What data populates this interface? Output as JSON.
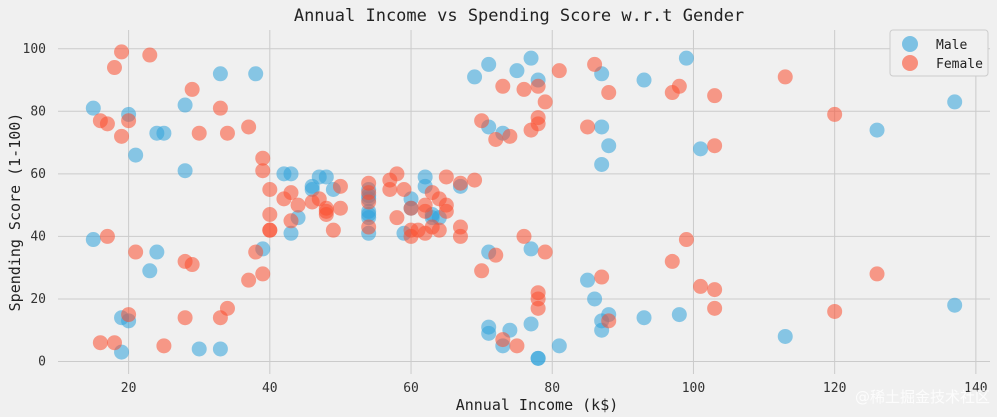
{
  "chart_data": {
    "type": "scatter",
    "title": "Annual Income vs Spending Score w.r.t Gender",
    "xlabel": "Annual Income (k$)",
    "ylabel": "Spending Score (1-100)",
    "xlim": [
      10,
      142
    ],
    "ylim": [
      -4,
      106
    ],
    "xticks": [
      20,
      40,
      60,
      80,
      100,
      120,
      140
    ],
    "yticks": [
      0,
      20,
      40,
      60,
      80,
      100
    ],
    "grid": true,
    "legend_position": "top-right",
    "watermark": "@稀土掘金技术社区",
    "series": [
      {
        "name": "Male",
        "color": "#30a2da",
        "points": [
          [
            15,
            39
          ],
          [
            15,
            81
          ],
          [
            19,
            3
          ],
          [
            19,
            14
          ],
          [
            20,
            13
          ],
          [
            20,
            79
          ],
          [
            21,
            66
          ],
          [
            23,
            29
          ],
          [
            24,
            35
          ],
          [
            24,
            73
          ],
          [
            25,
            73
          ],
          [
            28,
            82
          ],
          [
            28,
            61
          ],
          [
            30,
            4
          ],
          [
            33,
            4
          ],
          [
            33,
            92
          ],
          [
            38,
            92
          ],
          [
            39,
            36
          ],
          [
            42,
            60
          ],
          [
            43,
            41
          ],
          [
            43,
            60
          ],
          [
            44,
            46
          ],
          [
            46,
            56
          ],
          [
            46,
            55
          ],
          [
            47,
            59
          ],
          [
            48,
            59
          ],
          [
            49,
            55
          ],
          [
            54,
            47
          ],
          [
            54,
            53
          ],
          [
            54,
            41
          ],
          [
            54,
            48
          ],
          [
            54,
            52
          ],
          [
            54,
            46
          ],
          [
            54,
            55
          ],
          [
            59,
            41
          ],
          [
            60,
            49
          ],
          [
            60,
            52
          ],
          [
            62,
            56
          ],
          [
            62,
            59
          ],
          [
            63,
            46
          ],
          [
            63,
            47
          ],
          [
            64,
            46
          ],
          [
            67,
            56
          ],
          [
            69,
            91
          ],
          [
            71,
            95
          ],
          [
            71,
            75
          ],
          [
            71,
            35
          ],
          [
            71,
            11
          ],
          [
            71,
            9
          ],
          [
            73,
            5
          ],
          [
            73,
            73
          ],
          [
            74,
            10
          ],
          [
            75,
            93
          ],
          [
            77,
            12
          ],
          [
            77,
            97
          ],
          [
            77,
            36
          ],
          [
            78,
            90
          ],
          [
            78,
            1
          ],
          [
            78,
            1
          ],
          [
            81,
            5
          ],
          [
            85,
            26
          ],
          [
            86,
            20
          ],
          [
            87,
            75
          ],
          [
            87,
            63
          ],
          [
            87,
            92
          ],
          [
            87,
            10
          ],
          [
            87,
            13
          ],
          [
            88,
            69
          ],
          [
            88,
            15
          ],
          [
            93,
            90
          ],
          [
            93,
            14
          ],
          [
            98,
            15
          ],
          [
            99,
            97
          ],
          [
            101,
            68
          ],
          [
            113,
            8
          ],
          [
            126,
            74
          ],
          [
            137,
            18
          ],
          [
            137,
            83
          ]
        ]
      },
      {
        "name": "Female",
        "color": "#fc4f30",
        "points": [
          [
            16,
            6
          ],
          [
            16,
            77
          ],
          [
            17,
            76
          ],
          [
            17,
            40
          ],
          [
            18,
            6
          ],
          [
            18,
            94
          ],
          [
            19,
            99
          ],
          [
            19,
            72
          ],
          [
            20,
            15
          ],
          [
            20,
            77
          ],
          [
            21,
            35
          ],
          [
            23,
            98
          ],
          [
            25,
            5
          ],
          [
            28,
            14
          ],
          [
            28,
            32
          ],
          [
            29,
            31
          ],
          [
            29,
            87
          ],
          [
            30,
            73
          ],
          [
            33,
            14
          ],
          [
            33,
            81
          ],
          [
            34,
            17
          ],
          [
            34,
            73
          ],
          [
            37,
            26
          ],
          [
            37,
            75
          ],
          [
            38,
            35
          ],
          [
            39,
            28
          ],
          [
            39,
            61
          ],
          [
            39,
            65
          ],
          [
            40,
            55
          ],
          [
            40,
            47
          ],
          [
            40,
            42
          ],
          [
            40,
            42
          ],
          [
            42,
            52
          ],
          [
            43,
            54
          ],
          [
            43,
            45
          ],
          [
            44,
            50
          ],
          [
            46,
            51
          ],
          [
            47,
            52
          ],
          [
            48,
            47
          ],
          [
            48,
            48
          ],
          [
            48,
            49
          ],
          [
            49,
            42
          ],
          [
            50,
            56
          ],
          [
            50,
            49
          ],
          [
            54,
            57
          ],
          [
            54,
            43
          ],
          [
            54,
            54
          ],
          [
            54,
            51
          ],
          [
            57,
            55
          ],
          [
            57,
            58
          ],
          [
            58,
            46
          ],
          [
            58,
            60
          ],
          [
            59,
            55
          ],
          [
            60,
            40
          ],
          [
            60,
            42
          ],
          [
            60,
            49
          ],
          [
            61,
            42
          ],
          [
            62,
            41
          ],
          [
            62,
            50
          ],
          [
            62,
            48
          ],
          [
            63,
            43
          ],
          [
            63,
            54
          ],
          [
            64,
            42
          ],
          [
            64,
            52
          ],
          [
            65,
            59
          ],
          [
            65,
            50
          ],
          [
            65,
            48
          ],
          [
            67,
            43
          ],
          [
            67,
            57
          ],
          [
            67,
            40
          ],
          [
            69,
            58
          ],
          [
            70,
            77
          ],
          [
            70,
            29
          ],
          [
            72,
            71
          ],
          [
            72,
            34
          ],
          [
            73,
            88
          ],
          [
            73,
            7
          ],
          [
            74,
            72
          ],
          [
            75,
            5
          ],
          [
            76,
            87
          ],
          [
            76,
            40
          ],
          [
            77,
            74
          ],
          [
            78,
            22
          ],
          [
            78,
            17
          ],
          [
            78,
            20
          ],
          [
            78,
            76
          ],
          [
            78,
            78
          ],
          [
            78,
            88
          ],
          [
            79,
            83
          ],
          [
            79,
            35
          ],
          [
            81,
            93
          ],
          [
            85,
            75
          ],
          [
            86,
            95
          ],
          [
            87,
            27
          ],
          [
            88,
            86
          ],
          [
            88,
            13
          ],
          [
            97,
            32
          ],
          [
            97,
            86
          ],
          [
            98,
            88
          ],
          [
            99,
            39
          ],
          [
            101,
            24
          ],
          [
            103,
            85
          ],
          [
            103,
            69
          ],
          [
            103,
            23
          ],
          [
            103,
            17
          ],
          [
            113,
            91
          ],
          [
            120,
            79
          ],
          [
            120,
            16
          ],
          [
            126,
            28
          ]
        ]
      }
    ]
  }
}
